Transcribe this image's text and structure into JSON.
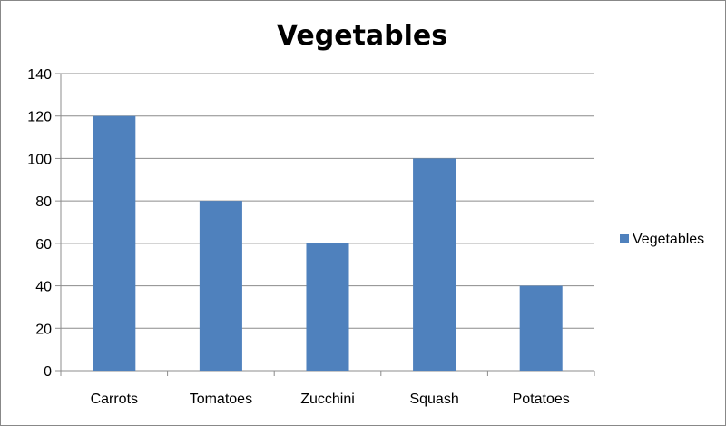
{
  "chart_data": {
    "type": "bar",
    "title": "Vegetables",
    "xlabel": "",
    "ylabel": "",
    "categories": [
      "Carrots",
      "Tomatoes",
      "Zucchini",
      "Squash",
      "Potatoes"
    ],
    "series": [
      {
        "name": "Vegetables",
        "values": [
          120,
          80,
          60,
          100,
          40
        ],
        "color": "#4F81BD"
      }
    ],
    "ylim": [
      0,
      140
    ],
    "yticks": [
      0,
      20,
      40,
      60,
      80,
      100,
      120,
      140
    ],
    "grid": true,
    "gridline_color": "#8C8C8C",
    "axis_color": "#8C8C8C",
    "legend_position": "right"
  }
}
